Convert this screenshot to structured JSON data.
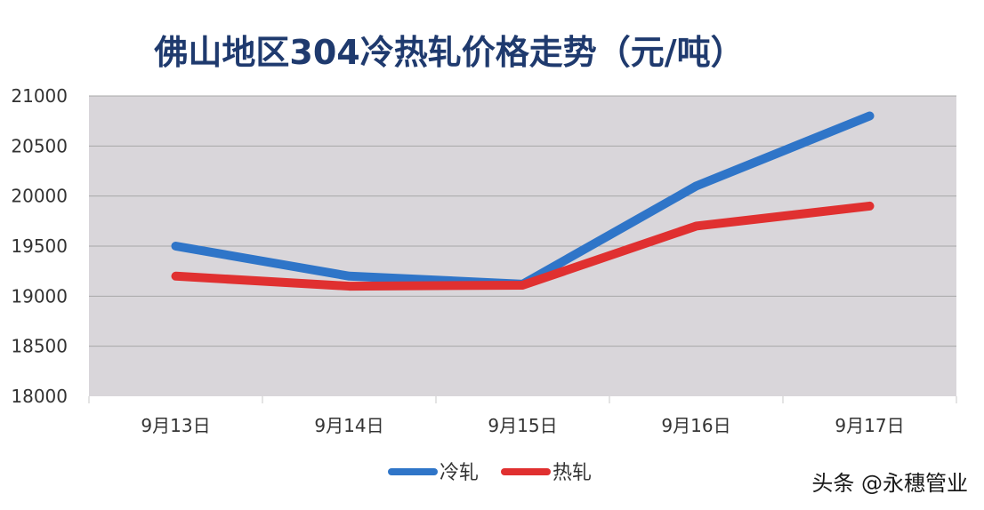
{
  "chart_data": {
    "type": "line",
    "title": "佛山地区304冷热轧价格走势（元/吨）",
    "xlabel": "",
    "ylabel": "",
    "categories": [
      "9月13日",
      "9月14日",
      "9月15日",
      "9月16日",
      "9月17日"
    ],
    "ylim": [
      18000,
      21000
    ],
    "yticks": [
      18000,
      18500,
      19000,
      19500,
      20000,
      20500,
      21000
    ],
    "grid": true,
    "legend_position": "bottom",
    "series": [
      {
        "name": "冷轧",
        "color": "#2f75c8",
        "values": [
          19500,
          19200,
          19120,
          20100,
          20800
        ]
      },
      {
        "name": "热轧",
        "color": "#e03030",
        "values": [
          19200,
          19100,
          19110,
          19700,
          19900
        ]
      }
    ],
    "plot_background": "#d9d6da",
    "gridline_color": "#a8a8a8"
  },
  "watermark": "头条 @永穗管业"
}
